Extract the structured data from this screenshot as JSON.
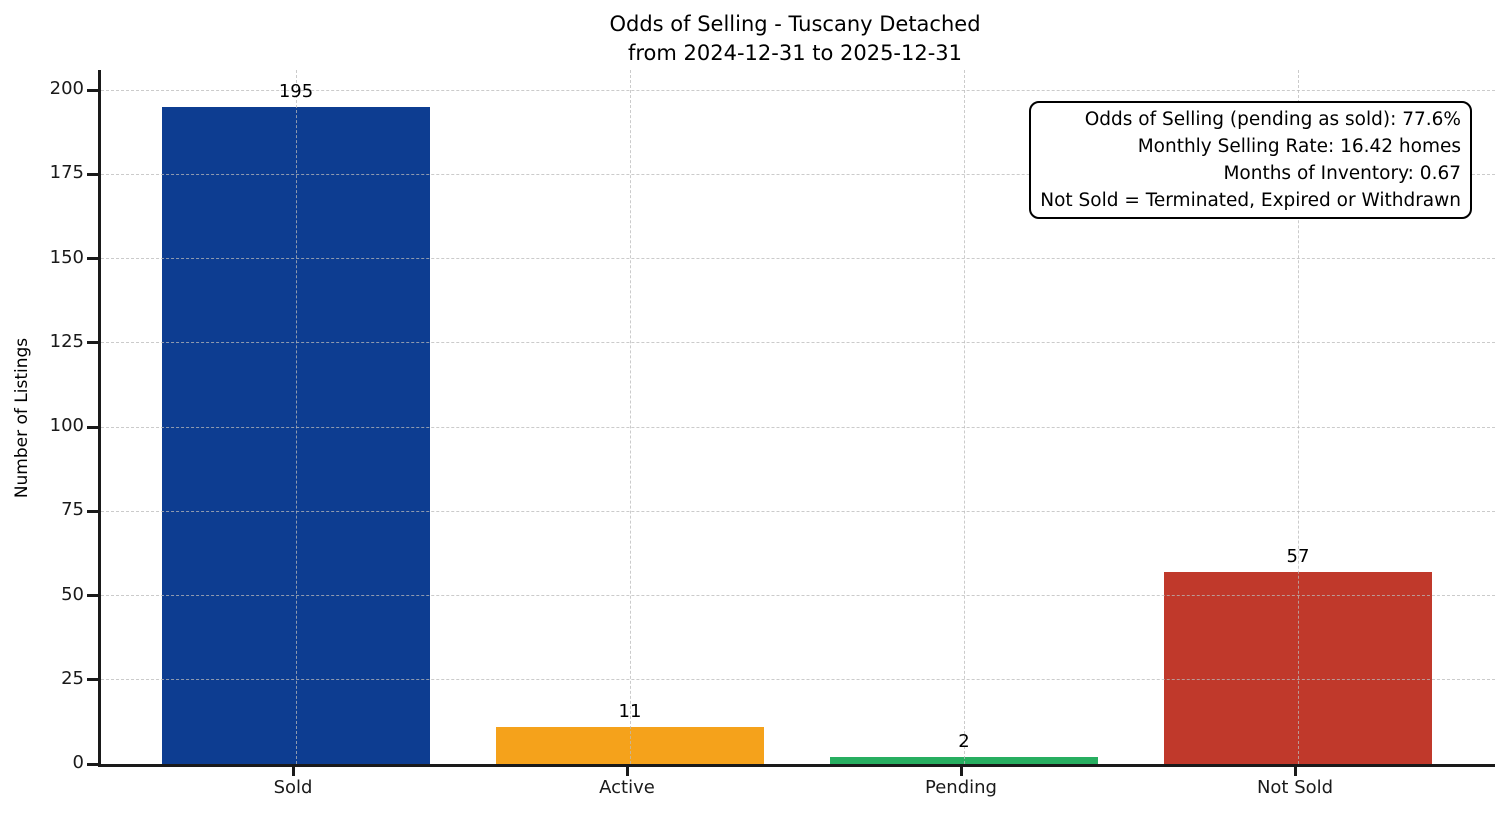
{
  "chart_data": {
    "type": "bar",
    "title_lines": [
      "Odds of Selling - Tuscany Detached",
      "from 2024-12-31 to 2025-12-31"
    ],
    "ylabel": "Number of Listings",
    "xlabel": "",
    "categories": [
      "Sold",
      "Active",
      "Pending",
      "Not Sold"
    ],
    "values": [
      195,
      11,
      2,
      57
    ],
    "bar_colors": [
      "#0d3d91",
      "#f5a21b",
      "#27ae60",
      "#c0392b"
    ],
    "ylim": [
      0,
      206
    ],
    "ytick_step": 25,
    "ytick_max": 200,
    "grid": true,
    "grid_style": "dashed",
    "legend_position": "none",
    "axis_color": "#1a1a1a",
    "annotation_lines": [
      "Odds of Selling (pending as sold): 77.6%",
      "Monthly Selling Rate: 16.42 homes",
      "Months of Inventory: 0.67",
      "Not Sold = Terminated, Expired or Withdrawn"
    ]
  }
}
